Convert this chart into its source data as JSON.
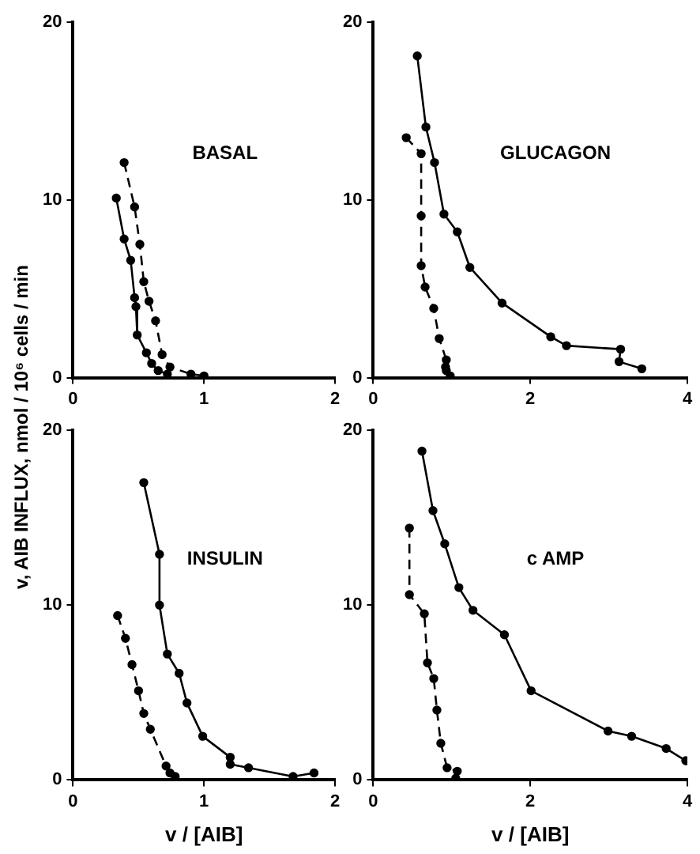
{
  "chart_data": [
    {
      "type": "line",
      "title": "BASAL",
      "ylabel": "v, AIB INFLUX, nmol / 10⁶ cells / min",
      "xlim": [
        0,
        2
      ],
      "xticks": [
        0,
        1,
        2
      ],
      "ylim": [
        0,
        20
      ],
      "yticks": [
        0,
        10,
        20
      ],
      "marker": "circle",
      "grid": false,
      "legend": false,
      "series": [
        {
          "color": "#000000",
          "line_style": "solid",
          "x": [
            0.33,
            0.39,
            0.44,
            0.47,
            0.48,
            0.49,
            0.56,
            0.6,
            0.65,
            0.72
          ],
          "values": [
            10.1,
            7.8,
            6.6,
            4.5,
            4.0,
            2.4,
            1.4,
            0.8,
            0.4,
            0.2
          ]
        },
        {
          "color": "#000000",
          "line_style": "dashed",
          "x": [
            0.39,
            0.47,
            0.51,
            0.54,
            0.58,
            0.63,
            0.68,
            0.74,
            0.9,
            1.0
          ],
          "values": [
            12.1,
            9.6,
            7.5,
            5.4,
            4.3,
            3.2,
            1.3,
            0.6,
            0.2,
            0.1
          ]
        }
      ]
    },
    {
      "type": "line",
      "title": "GLUCAGON",
      "xlim": [
        0,
        4
      ],
      "xticks": [
        0,
        2,
        4
      ],
      "ylim": [
        0,
        20
      ],
      "yticks": [
        0,
        10,
        20
      ],
      "marker": "circle",
      "grid": false,
      "legend": false,
      "series": [
        {
          "color": "#000000",
          "line_style": "solid",
          "x": [
            0.56,
            0.67,
            0.78,
            0.9,
            1.07,
            1.23,
            1.64,
            2.26,
            2.46,
            3.15,
            3.13,
            3.42
          ],
          "values": [
            18.1,
            14.1,
            12.1,
            9.2,
            8.2,
            6.2,
            4.2,
            2.3,
            1.8,
            1.6,
            0.9,
            0.5
          ]
        },
        {
          "color": "#000000",
          "line_style": "dashed",
          "x": [
            0.42,
            0.61,
            0.61,
            0.61,
            0.66,
            0.77,
            0.84,
            0.93,
            0.92,
            0.93,
            0.98
          ],
          "values": [
            13.5,
            12.6,
            9.1,
            6.3,
            5.1,
            3.9,
            2.2,
            1.0,
            0.6,
            0.4,
            0.1
          ]
        }
      ]
    },
    {
      "type": "line",
      "title": "INSULIN",
      "xlabel": "v / [AIB]",
      "xlim": [
        0,
        2
      ],
      "xticks": [
        0,
        1,
        2
      ],
      "ylim": [
        0,
        20
      ],
      "yticks": [
        0,
        10,
        20
      ],
      "marker": "circle",
      "grid": false,
      "legend": false,
      "series": [
        {
          "color": "#000000",
          "line_style": "solid",
          "x": [
            0.54,
            0.66,
            0.66,
            0.72,
            0.81,
            0.87,
            0.99,
            1.2,
            1.2,
            1.34,
            1.68,
            1.84
          ],
          "values": [
            17.0,
            12.9,
            10.0,
            7.2,
            6.1,
            4.4,
            2.5,
            1.3,
            0.9,
            0.7,
            0.2,
            0.4
          ]
        },
        {
          "color": "#000000",
          "line_style": "dashed",
          "x": [
            0.34,
            0.4,
            0.45,
            0.5,
            0.54,
            0.59,
            0.71,
            0.74,
            0.78
          ],
          "values": [
            9.4,
            8.1,
            6.6,
            5.1,
            3.8,
            2.9,
            0.8,
            0.4,
            0.2
          ]
        }
      ]
    },
    {
      "type": "line",
      "title": "c AMP",
      "xlabel": "v / [AIB]",
      "xlim": [
        0,
        4
      ],
      "xticks": [
        0,
        2,
        4
      ],
      "ylim": [
        0,
        20
      ],
      "yticks": [
        0,
        10,
        20
      ],
      "marker": "circle",
      "grid": false,
      "legend": false,
      "series": [
        {
          "color": "#000000",
          "line_style": "solid",
          "x": [
            0.62,
            0.76,
            0.91,
            1.09,
            1.27,
            1.67,
            2.01,
            2.99,
            3.29,
            3.73,
            3.98
          ],
          "values": [
            18.8,
            15.4,
            13.5,
            11.0,
            9.7,
            8.3,
            5.1,
            2.8,
            2.5,
            1.8,
            1.1
          ]
        },
        {
          "color": "#000000",
          "line_style": "dashed",
          "x": [
            0.46,
            0.46,
            0.65,
            0.69,
            0.77,
            0.81,
            0.86,
            0.94,
            1.07,
            1.05
          ],
          "values": [
            14.4,
            10.6,
            9.5,
            6.7,
            5.8,
            4.0,
            2.1,
            0.7,
            0.5,
            0.1
          ]
        }
      ]
    }
  ]
}
